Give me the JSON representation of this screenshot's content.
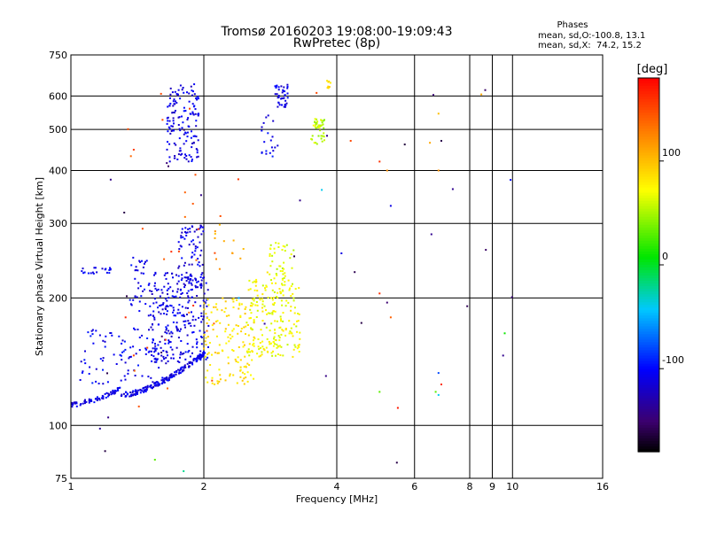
{
  "chart_data": {
    "type": "scatter",
    "title": "Tromsø 20160203 19:08:00-19:09:43",
    "subtitle": "RwPretec (8p)",
    "xlabel": "Frequency [MHz]",
    "ylabel": "Stationary phase Virtual Height [km]",
    "x_scale": "log",
    "y_scale": "log",
    "xlim": [
      1,
      16
    ],
    "ylim": [
      75,
      750
    ],
    "x_ticks": [
      1,
      2,
      4,
      6,
      8,
      9,
      10,
      16
    ],
    "x_tick_labels": [
      "1",
      "2",
      "4",
      "6",
      "8",
      "9",
      "10",
      "16"
    ],
    "y_ticks": [
      75,
      100,
      200,
      300,
      400,
      500,
      600,
      750
    ],
    "y_tick_labels": [
      "75",
      "100",
      "200",
      "300",
      "400",
      "500",
      "600",
      "750"
    ],
    "grid": true,
    "stats_header": "Phases",
    "stats_line1": "mean, sd,O:-100.8, 13.1",
    "stats_line2": "mean, sd,X:  74.2, 15.2",
    "colorbar": {
      "label": "[deg]",
      "min": -180,
      "max": 180,
      "ticks": [
        100,
        0,
        -100
      ],
      "tick_labels": [
        "100",
        "0",
        "-100"
      ]
    },
    "clusters": [
      {
        "fmin": 1.0,
        "fmax": 1.3,
        "hmin": 112,
        "hmax": 122,
        "n": 70,
        "phase": -110,
        "trace": "o-low"
      },
      {
        "fmin": 1.3,
        "fmax": 2.0,
        "hmin": 118,
        "hmax": 148,
        "n": 180,
        "phase": -110,
        "trace": "o-low"
      },
      {
        "fmin": 1.05,
        "fmax": 1.65,
        "hmin": 125,
        "hmax": 170,
        "n": 90,
        "phase": -105
      },
      {
        "fmin": 1.5,
        "fmax": 2.05,
        "hmin": 140,
        "hmax": 230,
        "n": 260,
        "phase": -110
      },
      {
        "fmin": 1.75,
        "fmax": 2.0,
        "hmin": 200,
        "hmax": 300,
        "n": 80,
        "phase": -110
      },
      {
        "fmin": 1.35,
        "fmax": 1.6,
        "hmin": 180,
        "hmax": 250,
        "n": 40,
        "phase": -105
      },
      {
        "fmin": 1.05,
        "fmax": 1.25,
        "hmin": 228,
        "hmax": 236,
        "n": 20,
        "phase": -110
      },
      {
        "fmin": 1.65,
        "fmax": 1.95,
        "hmin": 420,
        "hmax": 640,
        "n": 140,
        "phase": -110
      },
      {
        "fmin": 2.9,
        "fmax": 3.1,
        "hmin": 560,
        "hmax": 640,
        "n": 40,
        "phase": -110
      },
      {
        "fmin": 2.7,
        "fmax": 2.95,
        "hmin": 430,
        "hmax": 540,
        "n": 20,
        "phase": -105
      },
      {
        "fmin": 2.0,
        "fmax": 2.6,
        "hmin": 125,
        "hmax": 200,
        "n": 140,
        "phase": 85
      },
      {
        "fmin": 2.5,
        "fmax": 3.3,
        "hmin": 145,
        "hmax": 230,
        "n": 220,
        "phase": 70
      },
      {
        "fmin": 2.8,
        "fmax": 3.2,
        "hmin": 230,
        "hmax": 270,
        "n": 30,
        "phase": 60
      },
      {
        "fmin": 3.5,
        "fmax": 3.75,
        "hmin": 460,
        "hmax": 530,
        "n": 45,
        "phase": 55
      },
      {
        "fmin": 3.8,
        "fmax": 3.9,
        "hmin": 620,
        "hmax": 660,
        "n": 8,
        "phase": 90
      },
      {
        "fmin": 2.1,
        "fmax": 2.5,
        "hmin": 230,
        "hmax": 300,
        "n": 12,
        "phase": 110
      },
      {
        "fmin": 1.3,
        "fmax": 2.4,
        "hmin": 85,
        "hmax": 620,
        "n": 30,
        "phase": 150
      },
      {
        "fmin": 1.0,
        "fmax": 10.0,
        "hmin": 80,
        "hmax": 620,
        "n": 30,
        "phase": -150
      }
    ],
    "sparse_points": [
      {
        "x": 4.3,
        "y": 470,
        "phase": 150
      },
      {
        "x": 5.0,
        "y": 420,
        "phase": 160
      },
      {
        "x": 5.2,
        "y": 400,
        "phase": 120
      },
      {
        "x": 5.3,
        "y": 330,
        "phase": -110
      },
      {
        "x": 4.1,
        "y": 255,
        "phase": -110
      },
      {
        "x": 5.0,
        "y": 205,
        "phase": 160
      },
      {
        "x": 5.2,
        "y": 195,
        "phase": -150
      },
      {
        "x": 5.3,
        "y": 180,
        "phase": 140
      },
      {
        "x": 5.0,
        "y": 120,
        "phase": 30
      },
      {
        "x": 5.5,
        "y": 110,
        "phase": 170
      },
      {
        "x": 6.5,
        "y": 465,
        "phase": 110
      },
      {
        "x": 6.9,
        "y": 470,
        "phase": -160
      },
      {
        "x": 6.8,
        "y": 400,
        "phase": 120
      },
      {
        "x": 6.8,
        "y": 545,
        "phase": 100
      },
      {
        "x": 8.5,
        "y": 605,
        "phase": 110
      },
      {
        "x": 9.9,
        "y": 380,
        "phase": -100
      },
      {
        "x": 9.6,
        "y": 165,
        "phase": 10
      },
      {
        "x": 6.8,
        "y": 133,
        "phase": -80
      },
      {
        "x": 6.9,
        "y": 125,
        "phase": 160
      },
      {
        "x": 6.7,
        "y": 120,
        "phase": 30
      },
      {
        "x": 6.8,
        "y": 118,
        "phase": -40
      },
      {
        "x": 3.6,
        "y": 610,
        "phase": 150
      },
      {
        "x": 3.7,
        "y": 360,
        "phase": -40
      },
      {
        "x": 1.8,
        "y": 78,
        "phase": -20
      },
      {
        "x": 1.55,
        "y": 83,
        "phase": 30
      },
      {
        "x": 2.4,
        "y": 200,
        "phase": -50
      },
      {
        "x": 1.6,
        "y": 607,
        "phase": 150
      }
    ]
  }
}
